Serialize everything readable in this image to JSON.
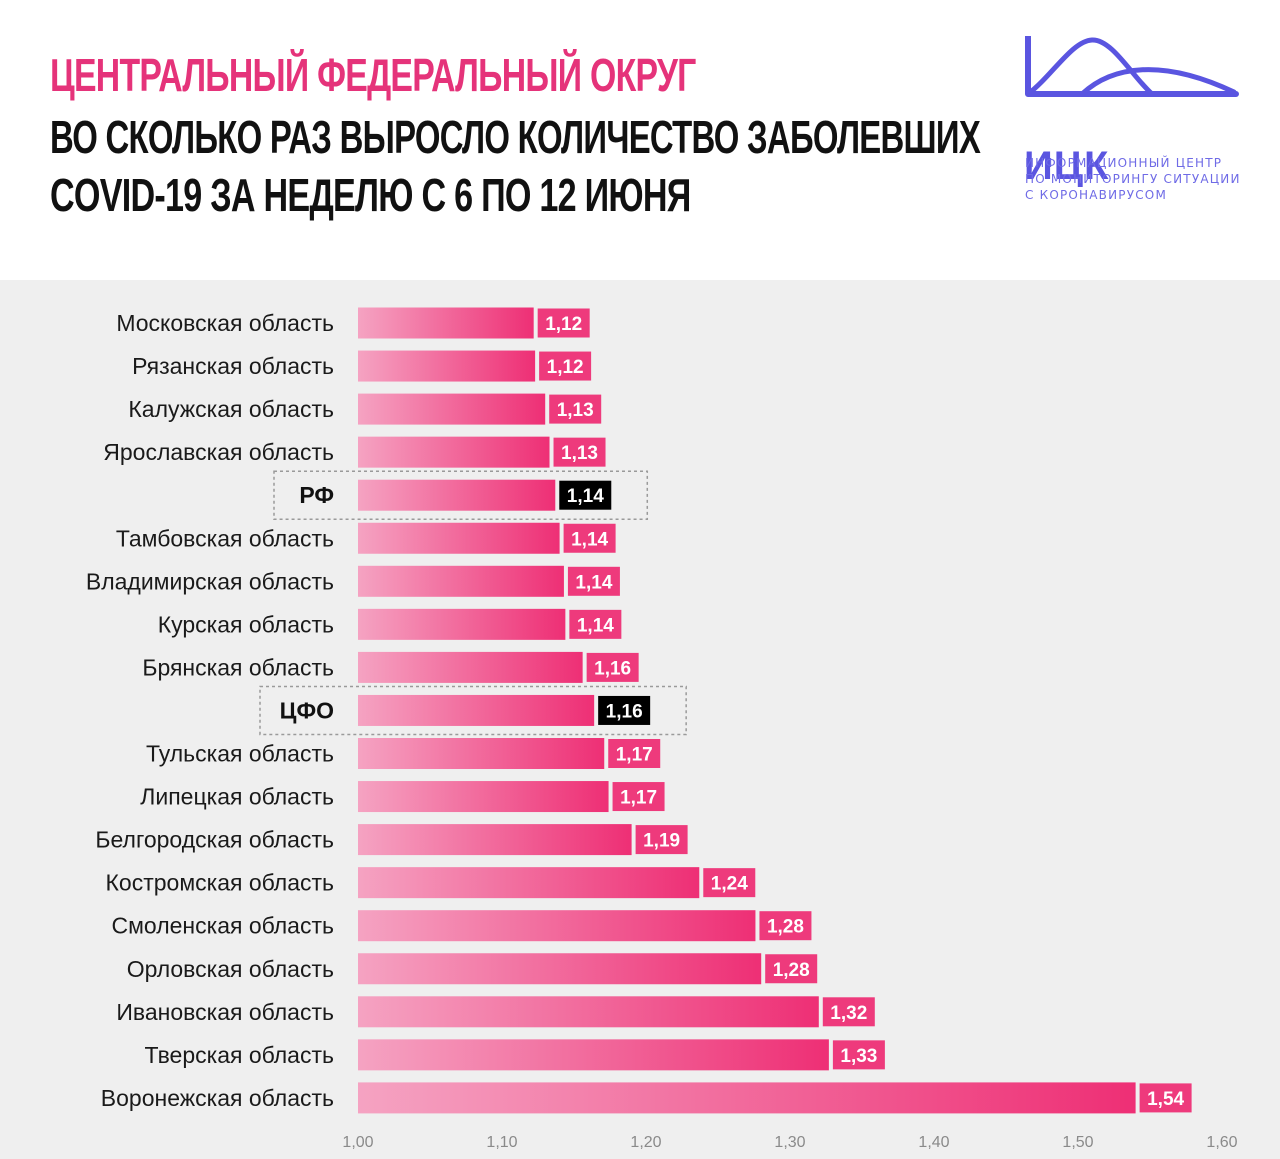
{
  "header": {
    "title_line1": "ЦЕНТРАЛЬНЫЙ ФЕДЕРАЛЬНЫЙ ОКРУГ",
    "title_line2": "ВО СКОЛЬКО РАЗ ВЫРОСЛО КОЛИЧЕСТВО ЗАБОЛЕВШИХ",
    "title_line3": "COVID-19 ЗА НЕДЕЛЮ С 6 ПО 12 ИЮНЯ"
  },
  "logo": {
    "abbr": "ИЦК",
    "subtitle_line1": "ИНФОРМАЦИОННЫЙ ЦЕНТР",
    "subtitle_line2": "ПО МОНИТОРИНГУ СИТУАЦИИ",
    "subtitle_line3": "С КОРОНАВИРУСОМ",
    "icon": "mountain-curve-logo-icon"
  },
  "colors": {
    "accent": "#e5337a",
    "bar_start": "#f5a3c2",
    "bar_end": "#ee2f75",
    "value_box": "#ee3a7c",
    "highlight_box": "#000000",
    "logo": "#5a55e0"
  },
  "chart_data": {
    "type": "bar",
    "orientation": "horizontal",
    "title": "ВО СКОЛЬКО РАЗ ВЫРОСЛО КОЛИЧЕСТВО ЗАБОЛЕВШИХ COVID-19 ЗА НЕДЕЛЮ С 6 ПО 12 ИЮНЯ",
    "categories": [
      "Московская область",
      "Рязанская область",
      "Калужская область",
      "Ярославская область",
      "РФ",
      "Тамбовская область",
      "Владимирская область",
      "Курская область",
      "Брянская область",
      "ЦФО",
      "Тульская область",
      "Липецкая область",
      "Белгородская область",
      "Костромская область",
      "Смоленская область",
      "Орловская область",
      "Ивановская область",
      "Тверская область",
      "Воронежская область"
    ],
    "values": [
      1.122,
      1.123,
      1.13,
      1.133,
      1.137,
      1.14,
      1.143,
      1.144,
      1.156,
      1.164,
      1.171,
      1.174,
      1.19,
      1.237,
      1.276,
      1.28,
      1.32,
      1.327,
      1.54
    ],
    "value_labels": [
      "1,12",
      "1,12",
      "1,13",
      "1,13",
      "1,14",
      "1,14",
      "1,14",
      "1,14",
      "1,16",
      "1,16",
      "1,17",
      "1,17",
      "1,19",
      "1,24",
      "1,28",
      "1,28",
      "1,32",
      "1,33",
      "1,54"
    ],
    "highlighted": [
      "РФ",
      "ЦФО"
    ],
    "xlim": [
      1.0,
      1.6
    ],
    "xticks": [
      1.0,
      1.1,
      1.2,
      1.3,
      1.4,
      1.5,
      1.6
    ],
    "xtick_labels": [
      "1,00",
      "1,10",
      "1,20",
      "1,30",
      "1,40",
      "1,50",
      "1,60"
    ],
    "xlabel": "",
    "ylabel": "",
    "grid": false,
    "legend": "none"
  }
}
